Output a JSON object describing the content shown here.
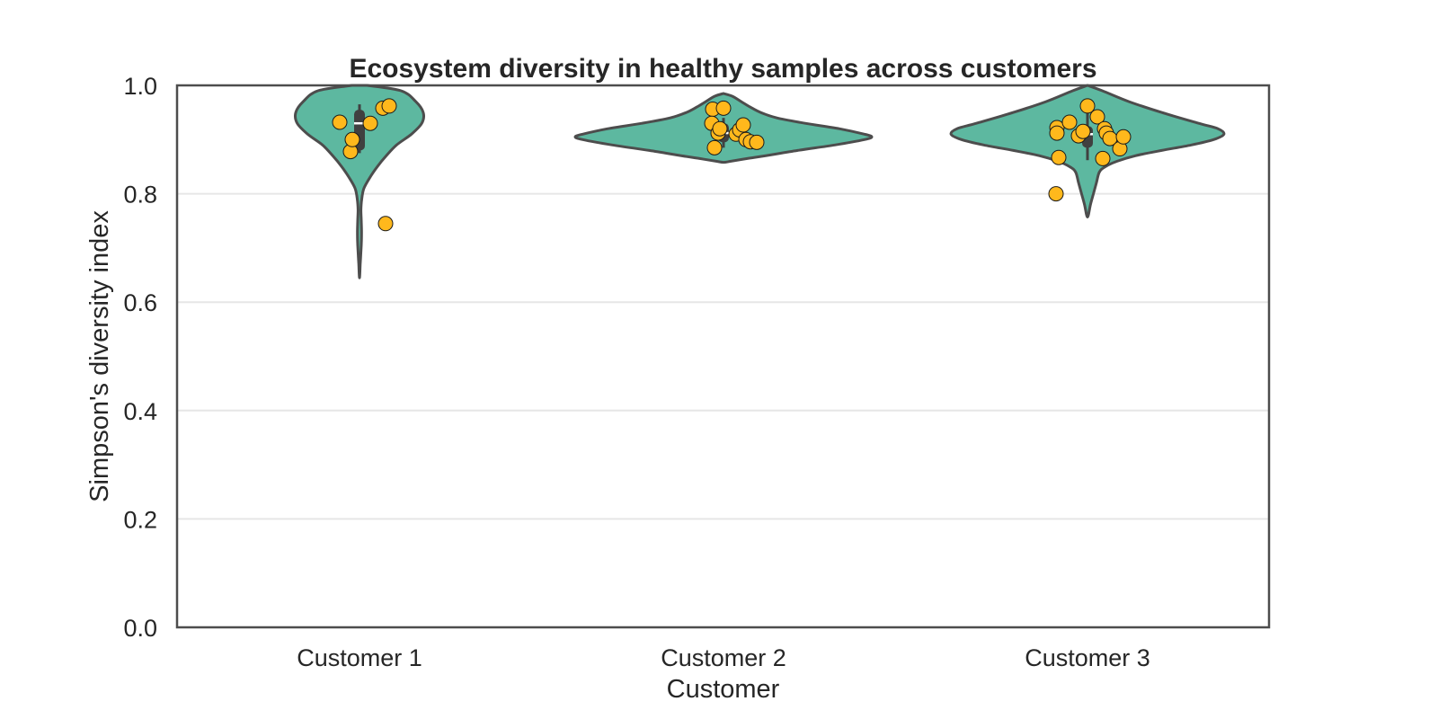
{
  "chart_data": {
    "type": "violin",
    "title": "Ecosystem diversity in healthy samples across customers",
    "xlabel": "Customer",
    "ylabel": "Simpson's diversity index",
    "categories": [
      "Customer 1",
      "Customer 2",
      "Customer 3"
    ],
    "ylim": [
      0.0,
      1.0
    ],
    "yticks": [
      0.0,
      0.2,
      0.4,
      0.6,
      0.8,
      1.0
    ],
    "ytick_labels": [
      "0.0",
      "0.2",
      "0.4",
      "0.6",
      "0.8",
      "1.0"
    ],
    "grid": "horizontal",
    "colors": {
      "violin_fill": "#5db8a0",
      "violin_edge": "#4d4d4d",
      "point_fill": "#ffb81c",
      "point_edge": "#1a1a1a",
      "grid": "#e6e6e6",
      "frame": "#4d4d4d",
      "box": "#404040",
      "median": "#ffffff"
    },
    "violins": [
      {
        "category": "Customer 1",
        "profile": [
          [
            1.0,
            0.05
          ],
          [
            0.99,
            0.28
          ],
          [
            0.97,
            0.38
          ],
          [
            0.95,
            0.43
          ],
          [
            0.93,
            0.42
          ],
          [
            0.91,
            0.35
          ],
          [
            0.89,
            0.25
          ],
          [
            0.87,
            0.18
          ],
          [
            0.85,
            0.12
          ],
          [
            0.83,
            0.07
          ],
          [
            0.81,
            0.03
          ],
          [
            0.79,
            0.015
          ],
          [
            0.77,
            0.01
          ],
          [
            0.75,
            0.012
          ],
          [
            0.73,
            0.014
          ],
          [
            0.71,
            0.013
          ],
          [
            0.69,
            0.009
          ],
          [
            0.67,
            0.005
          ],
          [
            0.645,
            0.0
          ]
        ],
        "box": {
          "q1": 0.88,
          "median": 0.93,
          "q3": 0.955,
          "whisker_low": 0.875,
          "whisker_high": 0.965
        }
      },
      {
        "category": "Customer 2",
        "profile": [
          [
            0.985,
            0.0
          ],
          [
            0.98,
            0.06
          ],
          [
            0.97,
            0.12
          ],
          [
            0.96,
            0.18
          ],
          [
            0.95,
            0.25
          ],
          [
            0.94,
            0.36
          ],
          [
            0.93,
            0.55
          ],
          [
            0.92,
            0.78
          ],
          [
            0.91,
            0.95
          ],
          [
            0.905,
            1.0
          ],
          [
            0.9,
            0.95
          ],
          [
            0.89,
            0.75
          ],
          [
            0.88,
            0.5
          ],
          [
            0.87,
            0.28
          ],
          [
            0.865,
            0.16
          ],
          [
            0.86,
            0.05
          ],
          [
            0.858,
            0.0
          ]
        ],
        "box": {
          "q1": 0.895,
          "median": 0.912,
          "q3": 0.93,
          "whisker_low": 0.885,
          "whisker_high": 0.94
        }
      },
      {
        "category": "Customer 3",
        "profile": [
          [
            1.0,
            0.0
          ],
          [
            0.99,
            0.1
          ],
          [
            0.97,
            0.28
          ],
          [
            0.95,
            0.5
          ],
          [
            0.93,
            0.75
          ],
          [
            0.92,
            0.88
          ],
          [
            0.91,
            0.92
          ],
          [
            0.9,
            0.85
          ],
          [
            0.89,
            0.7
          ],
          [
            0.88,
            0.5
          ],
          [
            0.87,
            0.32
          ],
          [
            0.86,
            0.2
          ],
          [
            0.85,
            0.12
          ],
          [
            0.84,
            0.08
          ],
          [
            0.82,
            0.06
          ],
          [
            0.8,
            0.04
          ],
          [
            0.78,
            0.02
          ],
          [
            0.757,
            0.0
          ]
        ],
        "box": {
          "q1": 0.885,
          "median": 0.91,
          "q3": 0.925,
          "whisker_low": 0.862,
          "whisker_high": 0.955
        }
      }
    ],
    "points": [
      {
        "category": "Customer 1",
        "jitter": -0.22,
        "y": 0.932
      },
      {
        "category": "Customer 1",
        "jitter": -0.1,
        "y": 0.878
      },
      {
        "category": "Customer 1",
        "jitter": -0.08,
        "y": 0.9
      },
      {
        "category": "Customer 1",
        "jitter": 0.12,
        "y": 0.93
      },
      {
        "category": "Customer 1",
        "jitter": 0.26,
        "y": 0.958
      },
      {
        "category": "Customer 1",
        "jitter": 0.33,
        "y": 0.962
      },
      {
        "category": "Customer 1",
        "jitter": 0.29,
        "y": 0.745
      },
      {
        "category": "Customer 2",
        "jitter": -0.12,
        "y": 0.956
      },
      {
        "category": "Customer 2",
        "jitter": 0.0,
        "y": 0.958
      },
      {
        "category": "Customer 2",
        "jitter": -0.13,
        "y": 0.93
      },
      {
        "category": "Customer 2",
        "jitter": -0.06,
        "y": 0.912
      },
      {
        "category": "Customer 2",
        "jitter": -0.04,
        "y": 0.92
      },
      {
        "category": "Customer 2",
        "jitter": 0.14,
        "y": 0.91
      },
      {
        "category": "Customer 2",
        "jitter": 0.18,
        "y": 0.918
      },
      {
        "category": "Customer 2",
        "jitter": 0.22,
        "y": 0.927
      },
      {
        "category": "Customer 2",
        "jitter": 0.25,
        "y": 0.9
      },
      {
        "category": "Customer 2",
        "jitter": 0.3,
        "y": 0.896
      },
      {
        "category": "Customer 2",
        "jitter": 0.37,
        "y": 0.895
      },
      {
        "category": "Customer 2",
        "jitter": -0.1,
        "y": 0.885
      },
      {
        "category": "Customer 3",
        "jitter": -0.34,
        "y": 0.922
      },
      {
        "category": "Customer 3",
        "jitter": -0.34,
        "y": 0.912
      },
      {
        "category": "Customer 3",
        "jitter": -0.2,
        "y": 0.932
      },
      {
        "category": "Customer 3",
        "jitter": -0.1,
        "y": 0.907
      },
      {
        "category": "Customer 3",
        "jitter": -0.05,
        "y": 0.915
      },
      {
        "category": "Customer 3",
        "jitter": 0.0,
        "y": 0.962
      },
      {
        "category": "Customer 3",
        "jitter": 0.11,
        "y": 0.942
      },
      {
        "category": "Customer 3",
        "jitter": 0.19,
        "y": 0.92
      },
      {
        "category": "Customer 3",
        "jitter": 0.21,
        "y": 0.912
      },
      {
        "category": "Customer 3",
        "jitter": 0.25,
        "y": 0.902
      },
      {
        "category": "Customer 3",
        "jitter": 0.36,
        "y": 0.883
      },
      {
        "category": "Customer 3",
        "jitter": 0.4,
        "y": 0.905
      },
      {
        "category": "Customer 3",
        "jitter": -0.32,
        "y": 0.867
      },
      {
        "category": "Customer 3",
        "jitter": 0.17,
        "y": 0.865
      },
      {
        "category": "Customer 3",
        "jitter": -0.35,
        "y": 0.8
      }
    ]
  }
}
